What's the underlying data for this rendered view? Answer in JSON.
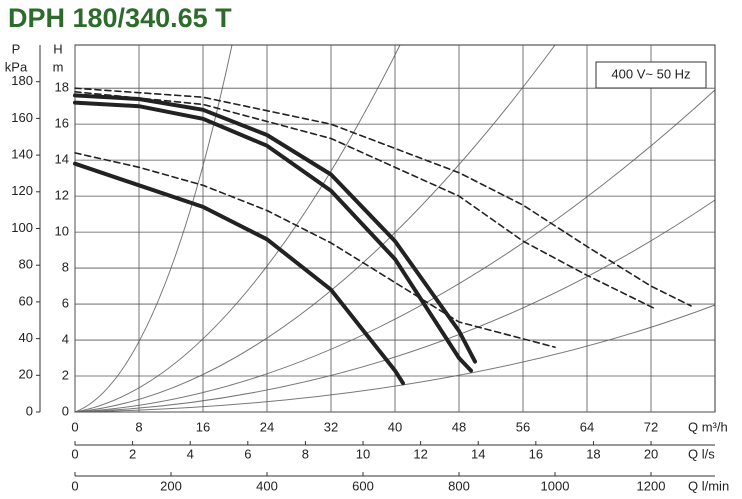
{
  "chart_data": {
    "type": "line",
    "title": "DPH 180/340.65 T",
    "annotation": "400 V~ 50 Hz",
    "y_label": [
      "H",
      "m"
    ],
    "y2_label": [
      "P",
      "kPa"
    ],
    "x_label": "Q m³/h",
    "x2_label": "Q l/s",
    "x3_label": "Q l/min",
    "xlim": [
      0,
      80
    ],
    "xticks": [
      0,
      8,
      16,
      24,
      32,
      40,
      48,
      56,
      64,
      72
    ],
    "x2lim": [
      0,
      22.22
    ],
    "x2ticks": [
      0,
      2,
      4,
      6,
      8,
      10,
      12,
      14,
      16,
      18,
      20
    ],
    "x3lim": [
      0,
      1333.3
    ],
    "x3ticks": [
      0,
      200,
      400,
      600,
      800,
      1000,
      1200
    ],
    "ylim": [
      0,
      20.4
    ],
    "yticks": [
      0,
      2,
      4,
      6,
      8,
      10,
      12,
      14,
      16,
      18
    ],
    "y2lim": [
      0,
      200
    ],
    "y2ticks": [
      0,
      20,
      40,
      60,
      80,
      100,
      120,
      140,
      160,
      180
    ],
    "grid": true,
    "series": [
      {
        "color": "#222",
        "dashed": false,
        "x": [
          0,
          8,
          16,
          24,
          32,
          40,
          41
        ],
        "values": [
          13.8,
          12.6,
          11.4,
          9.6,
          6.8,
          2.3,
          1.6
        ]
      },
      {
        "color": "#222",
        "dashed": false,
        "x": [
          0,
          8,
          16,
          24,
          32,
          40,
          48,
          49.5
        ],
        "values": [
          17.2,
          17,
          16.3,
          14.8,
          12.3,
          8.5,
          3,
          2.3
        ]
      },
      {
        "color": "#222",
        "dashed": false,
        "x": [
          0,
          8,
          16,
          24,
          32,
          40,
          48,
          50
        ],
        "values": [
          17.6,
          17.4,
          16.8,
          15.4,
          13.2,
          9.5,
          4.5,
          2.8
        ]
      },
      {
        "color": "#222",
        "dashed": true,
        "x": [
          0,
          8,
          16,
          24,
          32,
          40,
          48,
          60
        ],
        "values": [
          14.4,
          13.6,
          12.6,
          11.2,
          9.4,
          7.2,
          5,
          3.6
        ]
      },
      {
        "color": "#222",
        "dashed": true,
        "x": [
          0,
          16,
          32,
          48,
          56,
          64,
          72.7
        ],
        "values": [
          17.8,
          17.1,
          15.2,
          12,
          9.5,
          7.6,
          5.7
        ]
      },
      {
        "color": "#222",
        "dashed": true,
        "x": [
          0,
          16,
          32,
          48,
          56,
          64,
          72,
          77
        ],
        "values": [
          18,
          17.5,
          16,
          13.3,
          11.5,
          9.2,
          7,
          5.9
        ]
      }
    ]
  }
}
